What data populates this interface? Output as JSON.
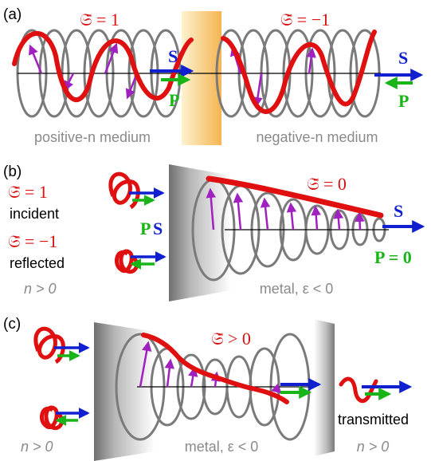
{
  "panels": [
    {
      "tag": "(a)",
      "left_chirality": "𝔖̄ = 1",
      "right_chirality": "𝔖̄ = −1",
      "left_medium": "positive-n medium",
      "right_medium": "negative-n medium",
      "s_label": "S",
      "p_label": "P"
    },
    {
      "tag": "(b)",
      "incident_chirality": "𝔖̄ = 1",
      "incident_label": "incident",
      "reflected_chirality": "𝔖̄ = −1",
      "reflected_label": "reflected",
      "left_medium": "n > 0",
      "metal_chirality": "𝔖̄ = 0",
      "metal_label": "metal, ε < 0",
      "s_label": "S",
      "p_label": "P",
      "p_zero": "P = 0"
    },
    {
      "tag": "(c)",
      "metal_chirality": "𝔖̄ > 0",
      "left_medium": "n > 0",
      "metal_label": "metal, ε < 0",
      "transmitted_label": "transmitted",
      "right_medium": "n > 0"
    }
  ],
  "colors": {
    "helix": "#e01010",
    "s_arrow": "#1020d0",
    "p_arrow": "#18b418",
    "field_arrow": "#a020c0",
    "ring": "#7a7a7a",
    "muted_text": "#8a8a8a"
  }
}
